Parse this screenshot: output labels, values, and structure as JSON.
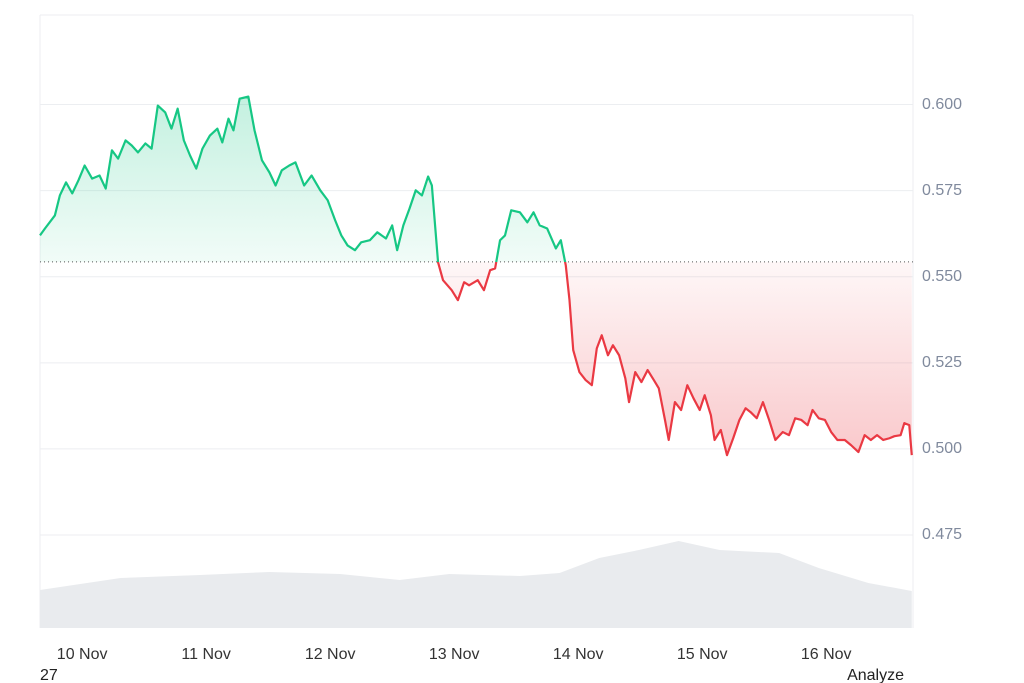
{
  "chart_data": {
    "type": "line",
    "x": [
      9.66,
      9.7,
      9.78,
      9.82,
      9.87,
      9.92,
      9.97,
      10.02,
      10.08,
      10.14,
      10.19,
      10.24,
      10.29,
      10.35,
      10.4,
      10.45,
      10.51,
      10.56,
      10.61,
      10.67,
      10.72,
      10.77,
      10.82,
      10.87,
      10.92,
      10.97,
      11.03,
      11.09,
      11.13,
      11.18,
      11.22,
      11.27,
      11.34,
      11.39,
      11.45,
      11.51,
      11.56,
      11.61,
      11.67,
      11.72,
      11.79,
      11.85,
      11.92,
      11.98,
      12.04,
      12.09,
      12.14,
      12.2,
      12.25,
      12.32,
      12.38,
      12.45,
      12.5,
      12.54,
      12.59,
      12.64,
      12.69,
      12.74,
      12.79,
      12.82,
      12.87,
      12.91,
      12.98,
      13.03,
      13.08,
      13.12,
      13.19,
      13.24,
      13.29,
      13.33,
      13.37,
      13.41,
      13.46,
      13.53,
      13.59,
      13.64,
      13.69,
      13.75,
      13.82,
      13.86,
      13.9,
      13.93,
      13.96,
      14.01,
      14.06,
      14.11,
      14.15,
      14.19,
      14.24,
      14.28,
      14.33,
      14.38,
      14.41,
      14.46,
      14.51,
      14.56,
      14.61,
      14.65,
      14.7,
      14.73,
      14.78,
      14.83,
      14.88,
      14.93,
      14.98,
      15.02,
      15.07,
      15.1,
      15.15,
      15.2,
      15.25,
      15.3,
      15.35,
      15.39,
      15.44,
      15.49,
      15.54,
      15.59,
      15.65,
      15.7,
      15.75,
      15.8,
      15.85,
      15.89,
      15.94,
      15.99,
      16.04,
      16.09,
      16.15,
      16.2,
      16.26,
      16.31,
      16.36,
      16.41,
      16.46,
      16.51,
      16.55,
      16.6,
      16.63,
      16.67,
      16.69
    ],
    "values": [
      0.562,
      0.564,
      0.5678,
      0.5736,
      0.5774,
      0.5742,
      0.578,
      0.5823,
      0.5785,
      0.5794,
      0.5756,
      0.5867,
      0.5843,
      0.5896,
      0.5881,
      0.5861,
      0.5887,
      0.5872,
      0.5997,
      0.5977,
      0.593,
      0.5988,
      0.5896,
      0.5852,
      0.5814,
      0.5872,
      0.591,
      0.593,
      0.589,
      0.5959,
      0.5925,
      0.6017,
      0.6023,
      0.5925,
      0.5838,
      0.5803,
      0.5765,
      0.5809,
      0.5823,
      0.5832,
      0.5765,
      0.5794,
      0.5751,
      0.5722,
      0.5664,
      0.562,
      0.5591,
      0.5577,
      0.56,
      0.5606,
      0.5629,
      0.5611,
      0.5649,
      0.5577,
      0.5649,
      0.5698,
      0.5751,
      0.5736,
      0.5791,
      0.5765,
      0.5542,
      0.549,
      0.5461,
      0.5432,
      0.5484,
      0.5475,
      0.549,
      0.5461,
      0.5519,
      0.5524,
      0.5606,
      0.562,
      0.5693,
      0.5687,
      0.5658,
      0.5687,
      0.5649,
      0.564,
      0.5582,
      0.5606,
      0.5533,
      0.5432,
      0.5287,
      0.5223,
      0.52,
      0.5185,
      0.5292,
      0.533,
      0.5272,
      0.5301,
      0.5272,
      0.5205,
      0.5136,
      0.5223,
      0.5194,
      0.5229,
      0.52,
      0.5176,
      0.5084,
      0.5026,
      0.5136,
      0.5113,
      0.5185,
      0.5147,
      0.5113,
      0.5156,
      0.5098,
      0.5026,
      0.5055,
      0.4982,
      0.5031,
      0.5084,
      0.5118,
      0.5107,
      0.5089,
      0.5136,
      0.5084,
      0.5026,
      0.5049,
      0.504,
      0.5089,
      0.5084,
      0.5069,
      0.5113,
      0.5089,
      0.5084,
      0.5049,
      0.5026,
      0.5026,
      0.5011,
      0.4991,
      0.504,
      0.5026,
      0.504,
      0.5026,
      0.5031,
      0.5037,
      0.504,
      0.5075,
      0.5069,
      0.4982
    ],
    "reference": 0.5543,
    "up_color": "#16c784",
    "down_color": "#ea3943",
    "xlim": [
      9.66,
      16.7
    ],
    "xticks": [
      {
        "value": 10,
        "label": "10 Nov"
      },
      {
        "value": 11,
        "label": "11 Nov"
      },
      {
        "value": 12,
        "label": "12 Nov"
      },
      {
        "value": 13,
        "label": "13 Nov"
      },
      {
        "value": 14,
        "label": "14 Nov"
      },
      {
        "value": 15,
        "label": "15 Nov"
      },
      {
        "value": 16,
        "label": "16 Nov"
      }
    ],
    "ylim": [
      0.448,
      0.626
    ],
    "yticks": [
      {
        "value": 0.475,
        "label": "0.475"
      },
      {
        "value": 0.5,
        "label": "0.500"
      },
      {
        "value": 0.525,
        "label": "0.525"
      },
      {
        "value": 0.55,
        "label": "0.550"
      },
      {
        "value": 0.575,
        "label": "0.575"
      },
      {
        "value": 0.6,
        "label": "0.600"
      }
    ],
    "grid": true,
    "volume": {
      "x": [
        9.66,
        10.31,
        10.95,
        11.51,
        12.08,
        12.56,
        12.96,
        13.53,
        13.85,
        14.17,
        14.49,
        14.81,
        15.14,
        15.62,
        15.94,
        16.34,
        16.69
      ],
      "values": [
        38,
        50,
        53,
        56,
        54,
        48,
        54,
        52,
        55,
        70,
        78,
        87,
        78,
        75,
        60,
        45,
        37
      ],
      "ylim": [
        0,
        100
      ],
      "color": "#e9ebee"
    },
    "footer_left": "27",
    "footer_right": "Analyze"
  }
}
